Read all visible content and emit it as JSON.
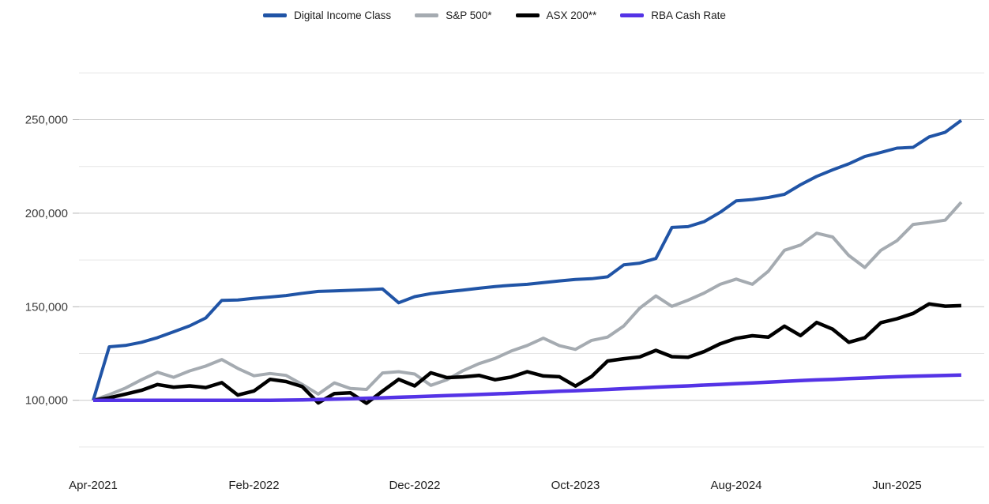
{
  "chart_data": {
    "type": "line",
    "title": "",
    "legend_position": "top",
    "grid": true,
    "x": [
      "Apr-2021",
      "May-2021",
      "Jun-2021",
      "Jul-2021",
      "Aug-2021",
      "Sep-2021",
      "Oct-2021",
      "Nov-2021",
      "Dec-2021",
      "Jan-2022",
      "Feb-2022",
      "Mar-2022",
      "Apr-2022",
      "May-2022",
      "Jun-2022",
      "Jul-2022",
      "Aug-2022",
      "Sep-2022",
      "Oct-2022",
      "Nov-2022",
      "Dec-2022",
      "Jan-2023",
      "Feb-2023",
      "Mar-2023",
      "Apr-2023",
      "May-2023",
      "Jun-2023",
      "Jul-2023",
      "Aug-2023",
      "Sep-2023",
      "Oct-2023",
      "Nov-2023",
      "Dec-2023",
      "Jan-2024",
      "Feb-2024",
      "Mar-2024",
      "Apr-2024",
      "May-2024",
      "Jun-2024",
      "Jul-2024",
      "Aug-2024",
      "Sep-2024",
      "Oct-2024",
      "Nov-2024",
      "Dec-2024",
      "Jan-2025",
      "Feb-2025",
      "Mar-2025",
      "Apr-2025",
      "May-2025",
      "Jun-2025",
      "Jul-2025",
      "Aug-2025",
      "Sep-2025",
      "Oct-2025"
    ],
    "x_tick_labels": [
      "Apr-2021",
      "Feb-2022",
      "Dec-2022",
      "Oct-2023",
      "Aug-2024",
      "Jun-2025"
    ],
    "x_tick_indices": [
      0,
      10,
      20,
      30,
      40,
      50
    ],
    "y_ticks_labeled": [
      100000,
      150000,
      200000,
      250000
    ],
    "y_gridlines_minor": [
      75000,
      125000,
      175000,
      225000,
      275000
    ],
    "ylim": [
      68000,
      285000
    ],
    "colors": {
      "digital_income_class": "#2054A6",
      "sp500": "#A5ABB1",
      "asx200": "#000000",
      "rba_cash_rate": "#5433E6",
      "grid_major": "#c9c9c9",
      "grid_minor": "#e6e6e6",
      "axis_label": "#3c3c3c",
      "x_label": "#1f1f1f"
    },
    "series": [
      {
        "name": "Digital Income Class",
        "color": "#2054A6",
        "width": 4,
        "values": [
          100000,
          128600,
          129300,
          131000,
          133500,
          136600,
          139800,
          144000,
          153400,
          153600,
          154500,
          155200,
          156000,
          157200,
          158200,
          158500,
          158800,
          159100,
          159500,
          152100,
          155400,
          157000,
          158000,
          158900,
          159900,
          160800,
          161500,
          162000,
          162900,
          163800,
          164600,
          165000,
          166000,
          172400,
          173300,
          175800,
          192400,
          192800,
          195500,
          200500,
          206600,
          207300,
          208400,
          210100,
          215200,
          219700,
          223200,
          226400,
          230300,
          232500,
          234800,
          235200,
          240800,
          243300,
          249600
        ]
      },
      {
        "name": "S&P 500*",
        "color": "#A5ABB1",
        "width": 4,
        "values": [
          100000,
          103000,
          106500,
          111000,
          115000,
          112300,
          115700,
          118300,
          121800,
          117000,
          113100,
          114300,
          113300,
          108500,
          103300,
          109300,
          106300,
          105800,
          114600,
          115300,
          114000,
          108000,
          111000,
          115800,
          119600,
          122400,
          126300,
          129300,
          133200,
          129200,
          127200,
          132000,
          133800,
          139700,
          149300,
          155800,
          150200,
          153500,
          157300,
          162000,
          164800,
          162000,
          169000,
          180200,
          183000,
          189300,
          187300,
          177400,
          171000,
          180200,
          185300,
          194000,
          195000,
          196300,
          205900
        ]
      },
      {
        "name": "ASX 200**",
        "color": "#000000",
        "width": 4.5,
        "values": [
          100000,
          101300,
          103300,
          105300,
          108400,
          107000,
          107700,
          106800,
          109400,
          102800,
          105000,
          111200,
          110000,
          107300,
          98600,
          103600,
          104000,
          98400,
          104900,
          111200,
          107700,
          114700,
          112100,
          112500,
          113300,
          111000,
          112400,
          115300,
          113000,
          112600,
          107600,
          112700,
          121000,
          122200,
          123200,
          126700,
          123300,
          123000,
          126000,
          130200,
          133100,
          134500,
          133800,
          139600,
          134600,
          141600,
          138000,
          131000,
          133400,
          141500,
          143600,
          146400,
          151500,
          150300,
          150600
        ]
      },
      {
        "name": "RBA Cash Rate",
        "color": "#5433E6",
        "width": 4.5,
        "values": [
          100000,
          100000,
          100000,
          100000,
          100000,
          100000,
          100000,
          100000,
          100000,
          100000,
          100000,
          100000,
          100100,
          100200,
          100400,
          100600,
          100800,
          101100,
          101300,
          101600,
          101900,
          102200,
          102500,
          102800,
          103100,
          103400,
          103700,
          104100,
          104400,
          104800,
          105100,
          105500,
          105800,
          106200,
          106600,
          107000,
          107400,
          107700,
          108100,
          108500,
          108900,
          109300,
          109700,
          110100,
          110500,
          110900,
          111200,
          111600,
          111900,
          112300,
          112600,
          112900,
          113100,
          113300,
          113500
        ]
      }
    ]
  }
}
